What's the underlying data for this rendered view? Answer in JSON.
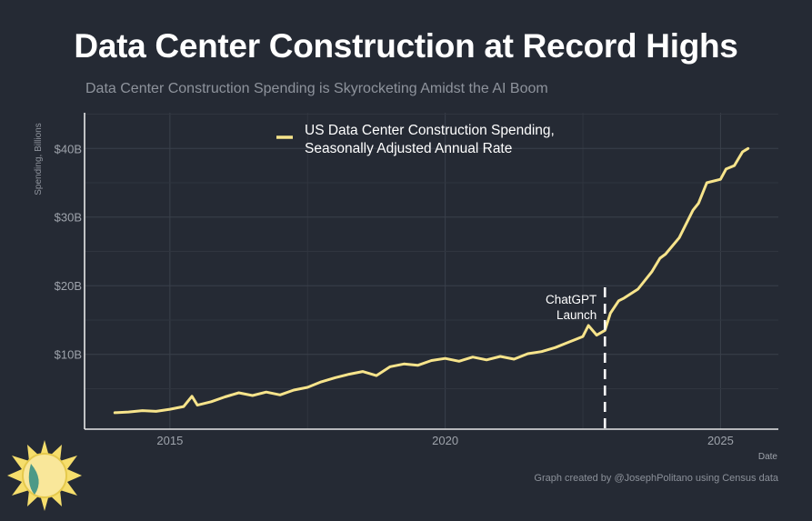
{
  "header": {
    "title": "Data Center Construction at Record Highs",
    "subtitle": "Data Center Construction Spending is Skyrocketing Amidst the AI Boom"
  },
  "footer": {
    "credit": "Graph created by @JosephPolitano using Census data"
  },
  "logo": {
    "icon": "sun-icon"
  },
  "chart_data": {
    "type": "line",
    "title": "Data Center Construction at Record Highs",
    "subtitle": "Data Center Construction Spending is Skyrocketing Amidst the AI Boom",
    "xlabel": "Date",
    "ylabel": "Spending, Billions",
    "xlim": [
      2013.45,
      2026.05
    ],
    "ylim": [
      -0.9,
      45.2
    ],
    "x_ticks": [
      2015,
      2020,
      2025
    ],
    "x_tick_labels": [
      "2015",
      "2020",
      "2025"
    ],
    "y_ticks": [
      10,
      20,
      30,
      40
    ],
    "y_tick_labels": [
      "$10B",
      "$20B",
      "$30B",
      "$40B"
    ],
    "grid": true,
    "legend_position": "top-center",
    "series": [
      {
        "name": "US Data Center Construction Spending, Seasonally Adjusted Annual Rate",
        "color": "#f7e48b",
        "x": [
          2014.0,
          2014.25,
          2014.5,
          2014.75,
          2015.0,
          2015.25,
          2015.4,
          2015.5,
          2015.75,
          2016.0,
          2016.25,
          2016.5,
          2016.75,
          2017.0,
          2017.25,
          2017.5,
          2017.75,
          2018.0,
          2018.25,
          2018.5,
          2018.75,
          2019.0,
          2019.25,
          2019.5,
          2019.75,
          2020.0,
          2020.25,
          2020.5,
          2020.75,
          2021.0,
          2021.25,
          2021.5,
          2021.75,
          2022.0,
          2022.25,
          2022.5,
          2022.6,
          2022.75,
          2022.9,
          2023.0,
          2023.15,
          2023.25,
          2023.5,
          2023.75,
          2023.9,
          2024.0,
          2024.25,
          2024.5,
          2024.6,
          2024.75,
          2025.0,
          2025.1,
          2025.25,
          2025.4,
          2025.5
        ],
        "values": [
          1.5,
          1.6,
          1.8,
          1.7,
          2.0,
          2.4,
          3.9,
          2.6,
          3.1,
          3.8,
          4.4,
          4.0,
          4.5,
          4.1,
          4.8,
          5.2,
          6.0,
          6.6,
          7.1,
          7.5,
          6.9,
          8.2,
          8.6,
          8.4,
          9.1,
          9.4,
          9.0,
          9.6,
          9.2,
          9.7,
          9.3,
          10.1,
          10.4,
          11.0,
          11.8,
          12.6,
          14.2,
          12.8,
          13.5,
          16.0,
          17.8,
          18.2,
          19.5,
          22.0,
          24.0,
          24.6,
          27.0,
          31.0,
          32.0,
          35.0,
          35.5,
          37.0,
          37.5,
          39.5,
          40.0
        ]
      }
    ],
    "annotations": [
      {
        "label_lines": [
          "ChatGPT",
          "Launch"
        ],
        "x": 2022.9
      }
    ]
  }
}
